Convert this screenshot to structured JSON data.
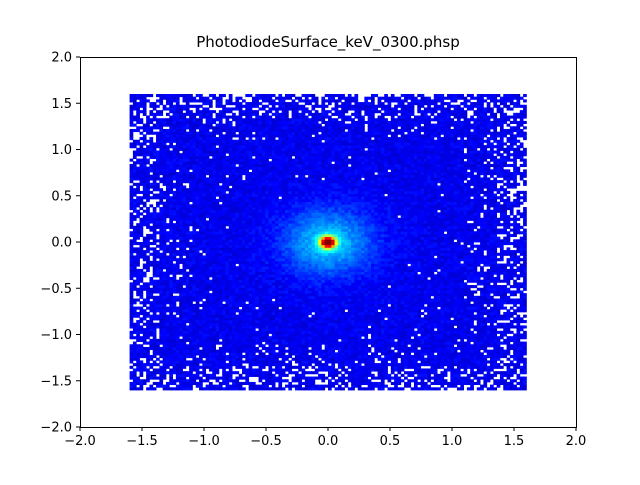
{
  "chart_data": {
    "type": "heatmap",
    "title": "PhotodiodeSurface_keV_0300.phsp",
    "xlabel": "",
    "ylabel": "",
    "xlim": [
      -2.0,
      2.0
    ],
    "ylim": [
      -2.0,
      2.0
    ],
    "x_ticks": [
      "−2.0",
      "−1.5",
      "−1.0",
      "−0.5",
      "0.0",
      "0.5",
      "1.0",
      "1.5",
      "2.0"
    ],
    "x_tick_values": [
      -2.0,
      -1.5,
      -1.0,
      -0.5,
      0.0,
      0.5,
      1.0,
      1.5,
      2.0
    ],
    "y_ticks": [
      "2.0",
      "1.5",
      "1.0",
      "0.5",
      "0.0",
      "−0.5",
      "−1.0",
      "−1.5",
      "−2.0"
    ],
    "y_tick_values": [
      2.0,
      1.5,
      1.0,
      0.5,
      0.0,
      -0.5,
      -1.0,
      -1.5,
      -2.0
    ],
    "grid": false,
    "colormap": "jet",
    "empty_bin_color": "#ffffff",
    "data_extent": {
      "x": [
        -1.6,
        1.6
      ],
      "y": [
        -1.6,
        1.6
      ]
    },
    "hotspot": {
      "x": 0.0,
      "y": 0.0
    },
    "description_values": {
      "background_level": 0.08,
      "peak_level": 1.0
    }
  },
  "colors": {
    "axis": "#000000",
    "background": "#ffffff"
  }
}
